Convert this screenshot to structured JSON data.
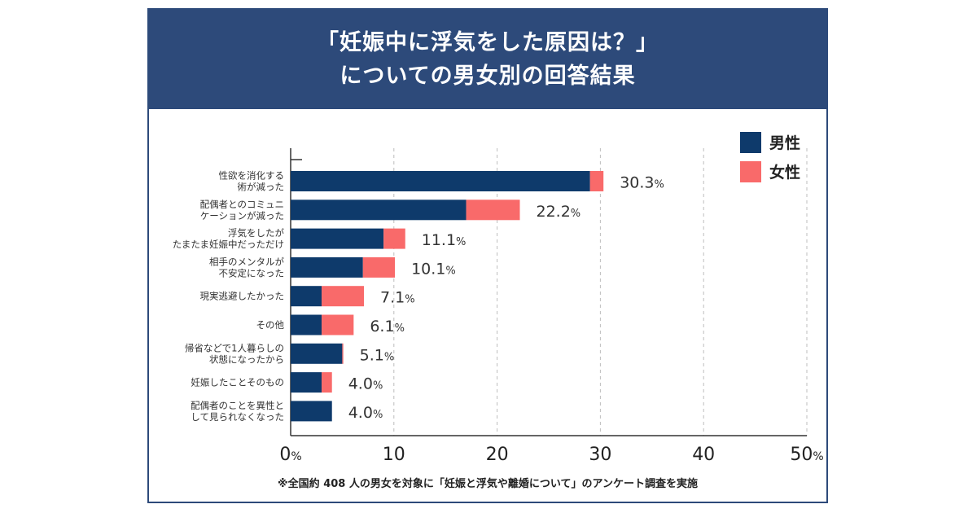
{
  "header": {
    "title_line1": "「妊娠中に浮気をした原因は？」",
    "title_line2": "についての男女別の回答結果"
  },
  "colors": {
    "header_bg": "#2d4a7a",
    "male": "#0e3a6b",
    "female": "#f96a6a"
  },
  "chart_data": {
    "type": "bar",
    "orientation": "horizontal",
    "stacked": true,
    "categories": [
      [
        "性欲を消化する",
        "術が減った"
      ],
      [
        "配偶者とのコミュニ",
        "ケーションが減った"
      ],
      [
        "浮気をしたが",
        "たまたま妊娠中だっただけ"
      ],
      [
        "相手のメンタルが",
        "不安定になった"
      ],
      [
        "現実逃避したかった"
      ],
      [
        "その他"
      ],
      [
        "帰省などで1人暮らしの",
        "状態になったから"
      ],
      [
        "妊娠したことそのもの"
      ],
      [
        "配偶者のことを異性と",
        "して見られなくなった"
      ]
    ],
    "series": [
      {
        "name": "男性",
        "color": "#0e3a6b",
        "values": [
          29.0,
          17.0,
          9.0,
          7.0,
          3.0,
          3.0,
          5.0,
          3.0,
          4.0
        ]
      },
      {
        "name": "女性",
        "color": "#f96a6a",
        "values": [
          1.3,
          5.2,
          2.1,
          3.1,
          4.1,
          3.1,
          0.1,
          1.0,
          0.0
        ]
      }
    ],
    "totals": [
      "30.3",
      "22.2",
      "11.1",
      "10.1",
      "7.1",
      "6.1",
      "5.1",
      "4.0",
      "4.0"
    ],
    "total_suffix": "%",
    "xlim": [
      0,
      50
    ],
    "x_ticks": [
      "0",
      "10",
      "20",
      "30",
      "40",
      "50"
    ],
    "x_tick_suffix": "%",
    "grid": "vertical dashed",
    "legend_position": "top-right"
  },
  "footnote": "※全国約 408 人の男女を対象に「妊娠と浮気や離婚について」のアンケート調査を実施"
}
